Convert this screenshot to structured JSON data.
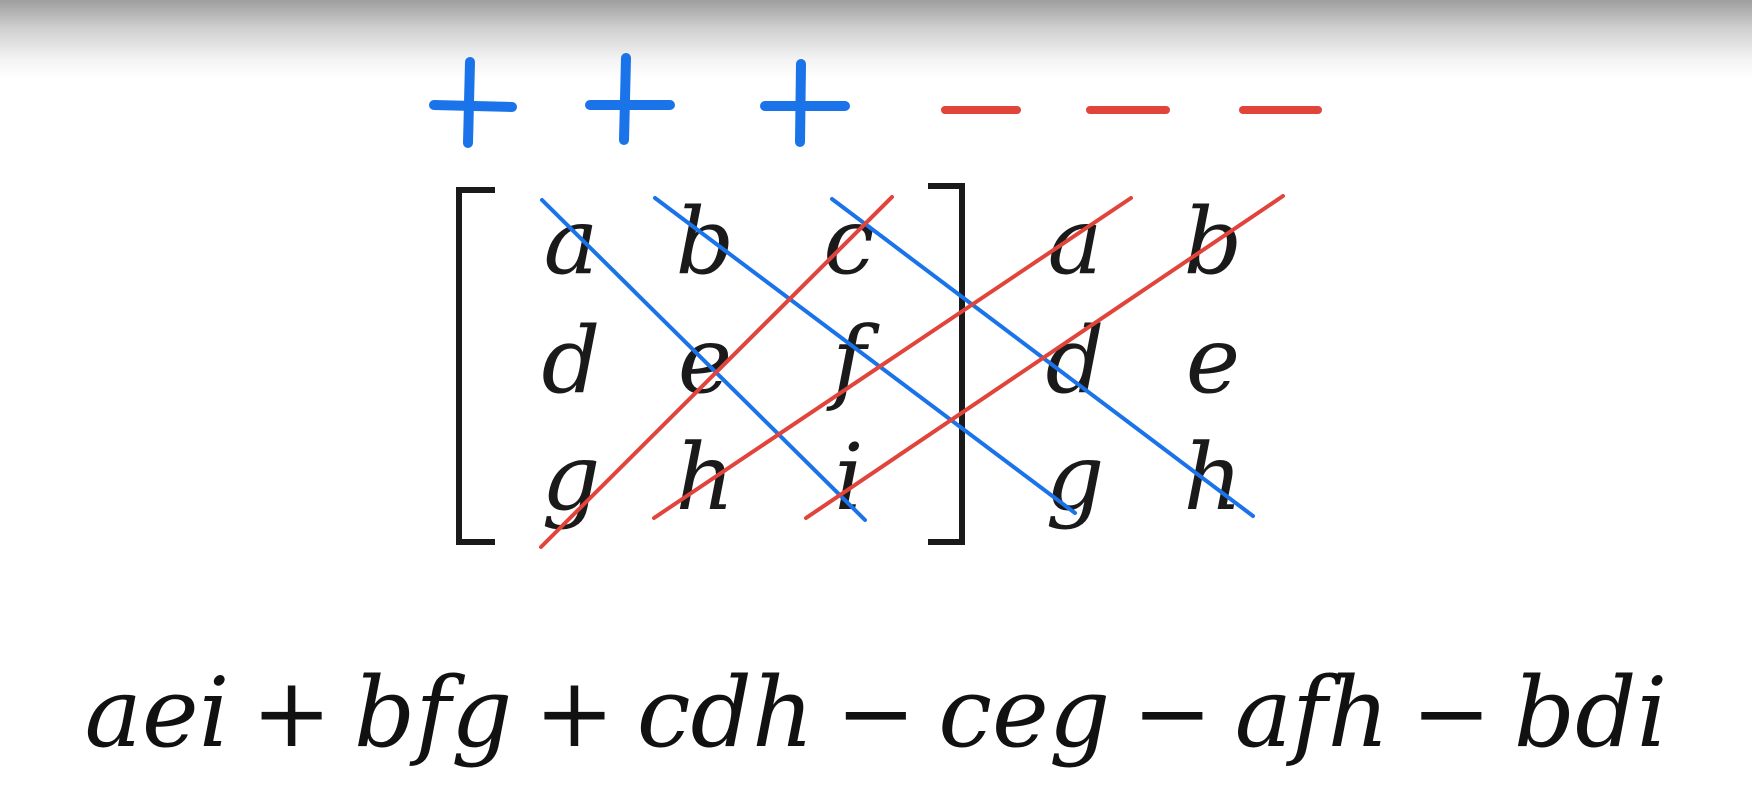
{
  "signs": {
    "positive": [
      "+",
      "+",
      "+"
    ],
    "negative": [
      "−",
      "−",
      "−"
    ]
  },
  "matrix": {
    "rows": [
      [
        "a",
        "b",
        "c"
      ],
      [
        "d",
        "e",
        "f"
      ],
      [
        "g",
        "h",
        "i"
      ]
    ],
    "extra_columns": [
      [
        "a",
        "b"
      ],
      [
        "d",
        "e"
      ],
      [
        "g",
        "h"
      ]
    ]
  },
  "formula": {
    "terms": [
      "aei",
      "bfg",
      "cdh",
      "ceg",
      "afh",
      "bdi"
    ],
    "operators": [
      "+",
      "+",
      "−",
      "−",
      "−"
    ]
  },
  "colors": {
    "positive": "#1a73e8",
    "negative": "#e0443a",
    "text": "#1a1a1a"
  }
}
